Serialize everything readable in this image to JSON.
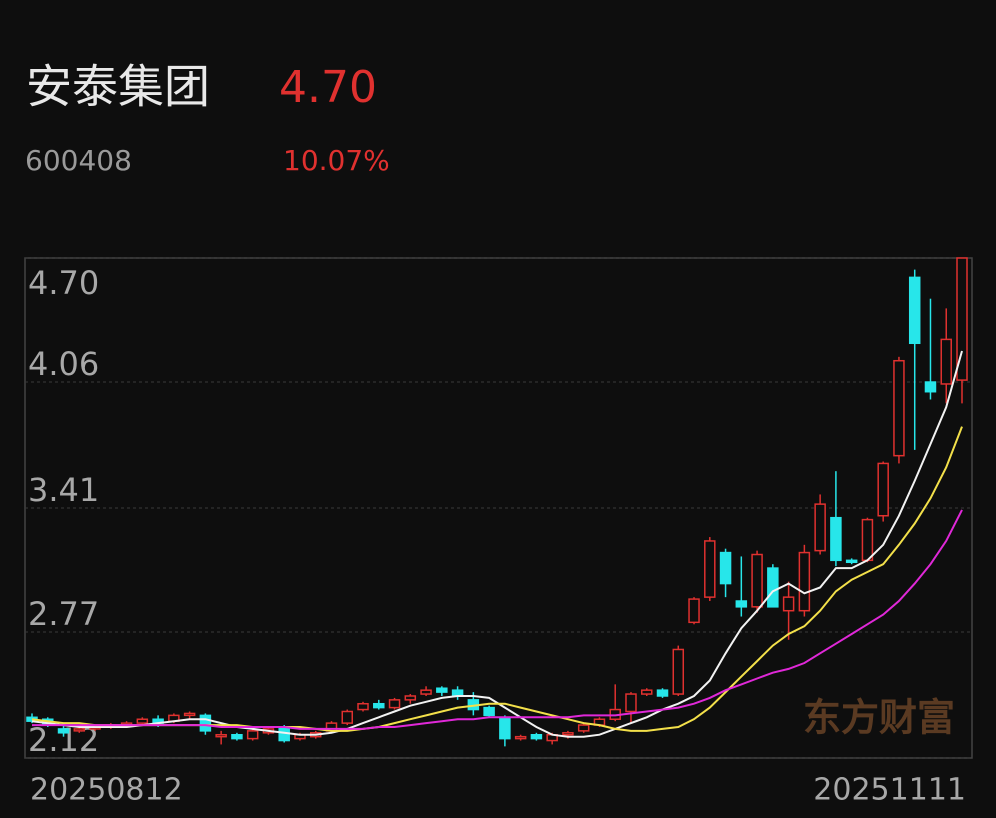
{
  "header": {
    "name": "安泰集团",
    "price": "4.70",
    "code": "600408",
    "change": "10.07%"
  },
  "watermark": "东方财富",
  "chart_data": {
    "type": "candlestick",
    "categories": [
      "20250812",
      null,
      null,
      null,
      null,
      null,
      null,
      null,
      null,
      null,
      null,
      null,
      null,
      null,
      null,
      null,
      null,
      null,
      null,
      null,
      null,
      null,
      null,
      null,
      null,
      null,
      null,
      null,
      null,
      null,
      null,
      null,
      null,
      null,
      null,
      null,
      null,
      null,
      null,
      null,
      null,
      null,
      null,
      null,
      null,
      null,
      null,
      null,
      null,
      null,
      null,
      null,
      null,
      null,
      null,
      null,
      null,
      null,
      null,
      "20251111"
    ],
    "open": [
      2.33,
      2.32,
      2.27,
      2.26,
      2.27,
      2.28,
      2.29,
      2.3,
      2.32,
      2.31,
      2.34,
      2.34,
      2.23,
      2.24,
      2.22,
      2.25,
      2.28,
      2.22,
      2.23,
      2.26,
      2.3,
      2.37,
      2.4,
      2.38,
      2.42,
      2.45,
      2.48,
      2.47,
      2.42,
      2.38,
      2.33,
      2.22,
      2.24,
      2.21,
      2.24,
      2.26,
      2.29,
      2.32,
      2.36,
      2.45,
      2.47,
      2.45,
      2.82,
      2.95,
      3.18,
      2.93,
      2.9,
      3.1,
      2.88,
      2.88,
      3.19,
      3.36,
      3.14,
      3.14,
      3.37,
      3.68,
      4.6,
      4.06,
      4.05,
      4.07
    ],
    "high": [
      2.35,
      2.33,
      2.29,
      2.28,
      2.29,
      2.3,
      2.31,
      2.33,
      2.34,
      2.35,
      2.36,
      2.35,
      2.26,
      2.25,
      2.27,
      2.28,
      2.29,
      2.25,
      2.26,
      2.31,
      2.37,
      2.41,
      2.42,
      2.43,
      2.45,
      2.49,
      2.49,
      2.49,
      2.46,
      2.39,
      2.34,
      2.24,
      2.25,
      2.25,
      2.26,
      2.3,
      2.33,
      2.5,
      2.46,
      2.48,
      2.48,
      2.7,
      2.95,
      3.26,
      3.2,
      3.16,
      3.19,
      3.12,
      3.03,
      3.22,
      3.48,
      3.6,
      3.15,
      3.36,
      3.65,
      4.19,
      4.64,
      4.49,
      4.44,
      4.7
    ],
    "low": [
      2.3,
      2.28,
      2.23,
      2.25,
      2.26,
      2.27,
      2.28,
      2.29,
      2.28,
      2.3,
      2.32,
      2.24,
      2.19,
      2.21,
      2.21,
      2.24,
      2.2,
      2.21,
      2.22,
      2.25,
      2.29,
      2.36,
      2.37,
      2.37,
      2.4,
      2.44,
      2.44,
      2.42,
      2.34,
      2.33,
      2.18,
      2.21,
      2.21,
      2.19,
      2.22,
      2.25,
      2.28,
      2.31,
      2.3,
      2.44,
      2.43,
      2.44,
      2.81,
      2.93,
      2.95,
      2.85,
      2.87,
      2.9,
      2.73,
      2.85,
      3.17,
      3.11,
      3.12,
      3.13,
      3.34,
      3.64,
      3.71,
      3.97,
      3.95,
      3.95
    ],
    "close": [
      2.31,
      2.29,
      2.25,
      2.27,
      2.28,
      2.29,
      2.3,
      2.32,
      2.3,
      2.34,
      2.35,
      2.26,
      2.24,
      2.22,
      2.26,
      2.27,
      2.21,
      2.24,
      2.25,
      2.3,
      2.36,
      2.4,
      2.38,
      2.42,
      2.44,
      2.47,
      2.46,
      2.44,
      2.37,
      2.34,
      2.22,
      2.23,
      2.22,
      2.24,
      2.25,
      2.29,
      2.32,
      2.37,
      2.45,
      2.47,
      2.44,
      2.68,
      2.94,
      3.24,
      3.02,
      2.9,
      3.17,
      2.9,
      2.95,
      3.18,
      3.43,
      3.14,
      3.13,
      3.35,
      3.64,
      4.17,
      4.26,
      4.01,
      4.28,
      4.7
    ],
    "up_color": "#e0312f",
    "down_color": "#27e6ea",
    "overlays": [
      {
        "color": "#f2f2f2",
        "values": [
          2.31,
          2.3,
          2.29,
          2.28,
          2.28,
          2.28,
          2.28,
          2.29,
          2.3,
          2.31,
          2.32,
          2.32,
          2.3,
          2.28,
          2.27,
          2.26,
          2.25,
          2.24,
          2.24,
          2.25,
          2.27,
          2.3,
          2.33,
          2.36,
          2.39,
          2.41,
          2.43,
          2.44,
          2.44,
          2.43,
          2.38,
          2.33,
          2.28,
          2.24,
          2.23,
          2.23,
          2.24,
          2.27,
          2.3,
          2.33,
          2.37,
          2.4,
          2.44,
          2.52,
          2.66,
          2.79,
          2.88,
          2.98,
          3.02,
          2.97,
          3.0,
          3.1,
          3.1,
          3.14,
          3.22,
          3.37,
          3.55,
          3.74,
          3.93,
          4.22
        ]
      },
      {
        "color": "#f3e04a",
        "values": [
          2.32,
          2.31,
          2.3,
          2.3,
          2.29,
          2.29,
          2.29,
          2.29,
          2.29,
          2.29,
          2.29,
          2.29,
          2.29,
          2.29,
          2.28,
          2.28,
          2.28,
          2.28,
          2.27,
          2.26,
          2.26,
          2.27,
          2.28,
          2.3,
          2.32,
          2.34,
          2.36,
          2.38,
          2.39,
          2.4,
          2.4,
          2.38,
          2.36,
          2.34,
          2.32,
          2.3,
          2.29,
          2.27,
          2.26,
          2.26,
          2.27,
          2.28,
          2.32,
          2.38,
          2.46,
          2.54,
          2.62,
          2.7,
          2.76,
          2.8,
          2.88,
          2.98,
          3.04,
          3.08,
          3.12,
          3.22,
          3.33,
          3.46,
          3.62,
          3.83
        ]
      },
      {
        "color": "#e028d8",
        "values": [
          2.29,
          2.29,
          2.29,
          2.29,
          2.29,
          2.29,
          2.29,
          2.29,
          2.29,
          2.29,
          2.29,
          2.29,
          2.28,
          2.28,
          2.28,
          2.28,
          2.28,
          2.27,
          2.27,
          2.27,
          2.27,
          2.27,
          2.28,
          2.28,
          2.29,
          2.3,
          2.31,
          2.32,
          2.32,
          2.33,
          2.33,
          2.33,
          2.33,
          2.33,
          2.33,
          2.34,
          2.34,
          2.34,
          2.35,
          2.36,
          2.37,
          2.38,
          2.4,
          2.43,
          2.47,
          2.5,
          2.53,
          2.56,
          2.58,
          2.61,
          2.66,
          2.71,
          2.76,
          2.81,
          2.86,
          2.93,
          3.02,
          3.12,
          3.24,
          3.4
        ]
      }
    ],
    "ylim": [
      2.12,
      4.7
    ],
    "yticks": [
      {
        "value": 4.7,
        "label": "4.70"
      },
      4.06,
      3.41,
      2.77,
      2.12
    ],
    "grid": true
  }
}
